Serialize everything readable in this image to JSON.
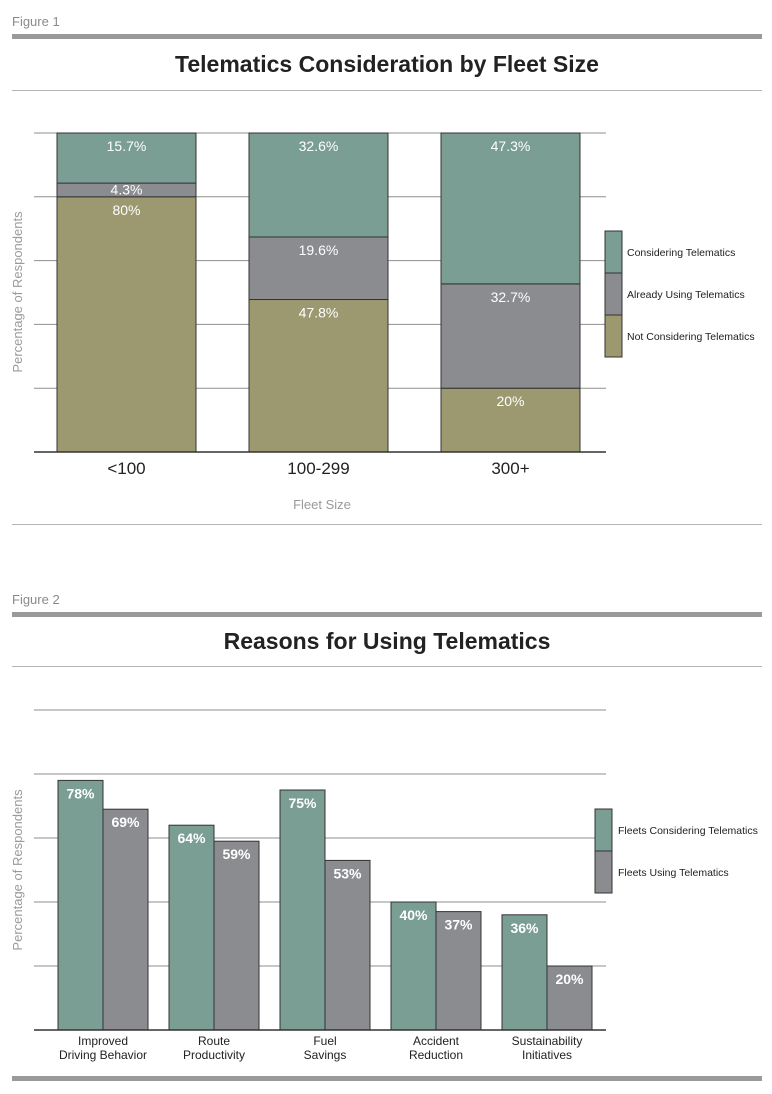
{
  "colors": {
    "considering": "#7a9e94",
    "already_using": "#8a8c8f",
    "not_considering": "#9c9870",
    "fleets_considering": "#7a9e94",
    "fleets_using": "#8a8c8f",
    "grid": "#8f8f8f",
    "rule": "#9a9a9a"
  },
  "figure1": {
    "label": "Figure 1",
    "title": "Telematics Consideration by Fleet Size"
  },
  "figure2": {
    "label": "Figure 2",
    "title": "Reasons for Using Telematics"
  },
  "chart_data": [
    {
      "type": "bar",
      "stacked": true,
      "title": "Telematics Consideration by Fleet Size",
      "xlabel": "Fleet Size",
      "ylabel": "Percentage of Respondents",
      "categories": [
        "<100",
        "100-299",
        "300+"
      ],
      "ylim": [
        0,
        100
      ],
      "grid": true,
      "legend_position": "right",
      "series": [
        {
          "name": "Not Considering Telematics",
          "values": [
            80,
            47.8,
            20
          ],
          "labels": [
            "80%",
            "47.8%",
            "20%"
          ]
        },
        {
          "name": "Already Using Telematics",
          "values": [
            4.3,
            19.6,
            32.7
          ],
          "labels": [
            "4.3%",
            "19.6%",
            "32.7%"
          ]
        },
        {
          "name": "Considering Telematics",
          "values": [
            15.7,
            32.6,
            47.3
          ],
          "labels": [
            "15.7%",
            "32.6%",
            "47.3%"
          ]
        }
      ]
    },
    {
      "type": "bar",
      "stacked": false,
      "title": "Reasons for Using Telematics",
      "xlabel": "",
      "ylabel": "Percentage of Respondents",
      "categories": [
        [
          "Improved",
          "Driving Behavior"
        ],
        [
          "Route",
          "Productivity"
        ],
        [
          "Fuel",
          "Savings"
        ],
        [
          "Accident",
          "Reduction"
        ],
        [
          "Sustainability",
          "Initiatives"
        ]
      ],
      "ylim": [
        0,
        100
      ],
      "grid": true,
      "legend_position": "right",
      "series": [
        {
          "name": "Fleets Considering Telematics",
          "values": [
            78,
            64,
            75,
            40,
            36
          ],
          "labels": [
            "78%",
            "64%",
            "75%",
            "40%",
            "36%"
          ]
        },
        {
          "name": "Fleets Using Telematics",
          "values": [
            69,
            59,
            53,
            37,
            20
          ],
          "labels": [
            "69%",
            "59%",
            "53%",
            "37%",
            "20%"
          ]
        }
      ]
    }
  ]
}
